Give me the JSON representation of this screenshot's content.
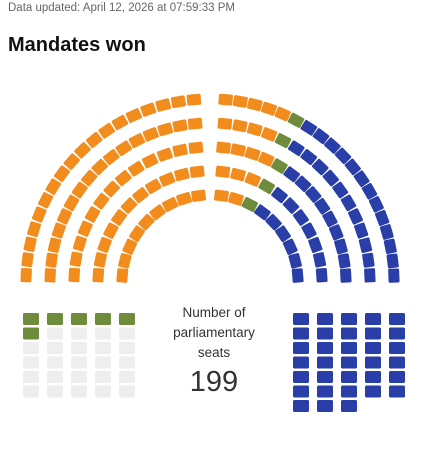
{
  "header": {
    "updated": "Data updated: April 12, 2026 at 07:59:33 PM",
    "title": "Mandates won"
  },
  "center": {
    "label": "Number of parliamentary seats",
    "total": "199"
  },
  "chart_data": {
    "type": "parliament",
    "total_seats": 199,
    "hemicycle_seats": 136,
    "parties": [
      {
        "color": "#f28c1c",
        "seats": 85
      },
      {
        "color": "#6e8c3c",
        "seats": 5
      },
      {
        "color": "#2a3ea8",
        "seats": 46
      }
    ],
    "grid_left": {
      "parties": [
        {
          "color": "#6e8c3c",
          "seats": 6
        },
        {
          "color": "#eeeeee",
          "seats": 24
        }
      ]
    },
    "grid_right": {
      "parties": [
        {
          "color": "#2a3ea8",
          "seats": 33
        }
      ]
    }
  }
}
